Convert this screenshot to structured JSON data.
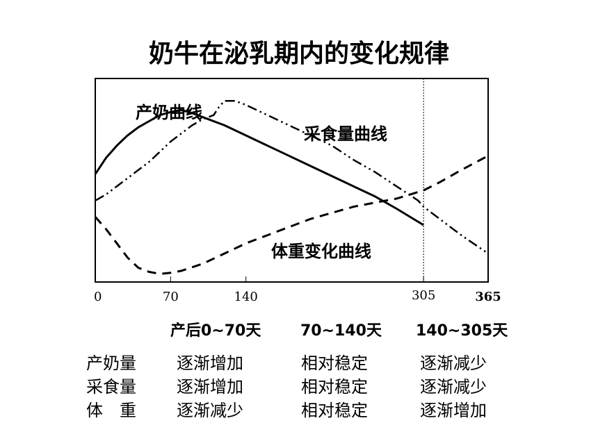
{
  "title": "奶牛在泌乳期内的变化规律",
  "chart_data": {
    "type": "line",
    "xlim": [
      0,
      365
    ],
    "x_ticks": [
      {
        "value": 0,
        "label": "0",
        "bold": false
      },
      {
        "value": 70,
        "label": "70",
        "bold": false
      },
      {
        "value": 140,
        "label": "140",
        "bold": false
      },
      {
        "value": 305,
        "label": "305",
        "bold": false
      },
      {
        "value": 365,
        "label": "365",
        "bold": true
      }
    ],
    "reference_line_x": 305,
    "series": [
      {
        "name": "产奶曲线",
        "style": "solid",
        "x": [
          0,
          10,
          20,
          30,
          40,
          50,
          60,
          70,
          80,
          90,
          100,
          120,
          140,
          160,
          180,
          200,
          220,
          240,
          260,
          280,
          305
        ],
        "y": [
          0.53,
          0.61,
          0.67,
          0.72,
          0.76,
          0.79,
          0.82,
          0.835,
          0.845,
          0.83,
          0.81,
          0.77,
          0.72,
          0.67,
          0.62,
          0.57,
          0.52,
          0.47,
          0.42,
          0.36,
          0.28
        ]
      },
      {
        "name": "采食量曲线",
        "style": "dash-dot-dot",
        "x": [
          0,
          10,
          20,
          30,
          40,
          50,
          60,
          70,
          80,
          90,
          100,
          110,
          115,
          120,
          130,
          140,
          160,
          180,
          200,
          220,
          240,
          260,
          280,
          300,
          305,
          320,
          340,
          365
        ],
        "y": [
          0.4,
          0.43,
          0.47,
          0.51,
          0.55,
          0.59,
          0.64,
          0.69,
          0.73,
          0.77,
          0.8,
          0.82,
          0.86,
          0.89,
          0.89,
          0.87,
          0.82,
          0.77,
          0.72,
          0.67,
          0.6,
          0.54,
          0.47,
          0.4,
          0.37,
          0.31,
          0.23,
          0.14
        ]
      },
      {
        "name": "体重变化曲线",
        "style": "dashed",
        "x": [
          0,
          10,
          20,
          30,
          40,
          50,
          60,
          70,
          80,
          100,
          120,
          140,
          160,
          180,
          200,
          220,
          240,
          260,
          280,
          305,
          320,
          340,
          365
        ],
        "y": [
          0.32,
          0.26,
          0.19,
          0.12,
          0.07,
          0.05,
          0.04,
          0.045,
          0.055,
          0.09,
          0.14,
          0.19,
          0.23,
          0.27,
          0.31,
          0.34,
          0.37,
          0.39,
          0.41,
          0.45,
          0.49,
          0.55,
          0.62
        ]
      }
    ]
  },
  "table": {
    "phases": [
      "产后0~70天",
      "70~140天",
      "140~305天"
    ],
    "rows": [
      {
        "label": "产奶量",
        "values": [
          "逐渐增加",
          "相对稳定",
          "逐渐减少"
        ]
      },
      {
        "label": "采食量",
        "values": [
          "逐渐增加",
          "相对稳定",
          "逐渐减少"
        ]
      },
      {
        "label": "体　重",
        "values": [
          "逐渐减少",
          "相对稳定",
          "逐渐增加"
        ]
      }
    ]
  }
}
